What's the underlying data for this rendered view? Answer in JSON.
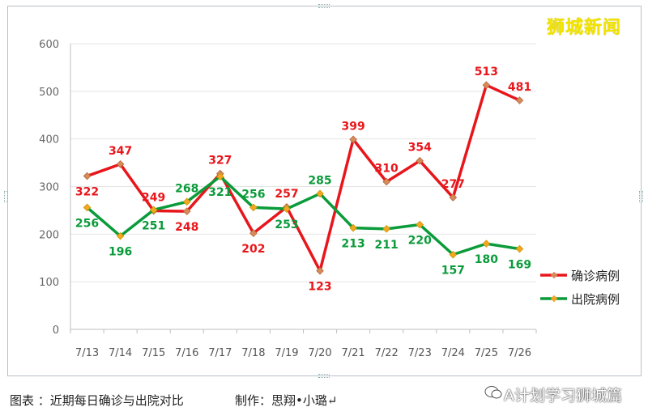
{
  "watermark": "狮城新闻",
  "caption": {
    "label": "图表 ：近期每日确诊与出院对比",
    "credit": "制作：思翔•小璐↵"
  },
  "brand": "A计划学习狮城篇",
  "colors": {
    "confirmed": "#e8161b",
    "discharged": "#0a9b3a",
    "marker": "#f5a623"
  },
  "chart_data": {
    "type": "line",
    "categories": [
      "7/13",
      "7/14",
      "7/15",
      "7/16",
      "7/17",
      "7/18",
      "7/19",
      "7/20",
      "7/21",
      "7/22",
      "7/23",
      "7/24",
      "7/25",
      "7/26"
    ],
    "ylim": [
      0,
      600
    ],
    "yticks": [
      0,
      100,
      200,
      300,
      400,
      500,
      600
    ],
    "grid": true,
    "legend_position": "right",
    "series": [
      {
        "name": "确诊病例",
        "color": "#e8161b",
        "values": [
          322,
          347,
          249,
          248,
          327,
          202,
          257,
          123,
          399,
          310,
          354,
          277,
          513,
          481
        ]
      },
      {
        "name": "出院病例",
        "color": "#0a9b3a",
        "values": [
          256,
          196,
          251,
          268,
          321,
          256,
          253,
          285,
          213,
          211,
          220,
          157,
          180,
          169
        ]
      }
    ]
  }
}
